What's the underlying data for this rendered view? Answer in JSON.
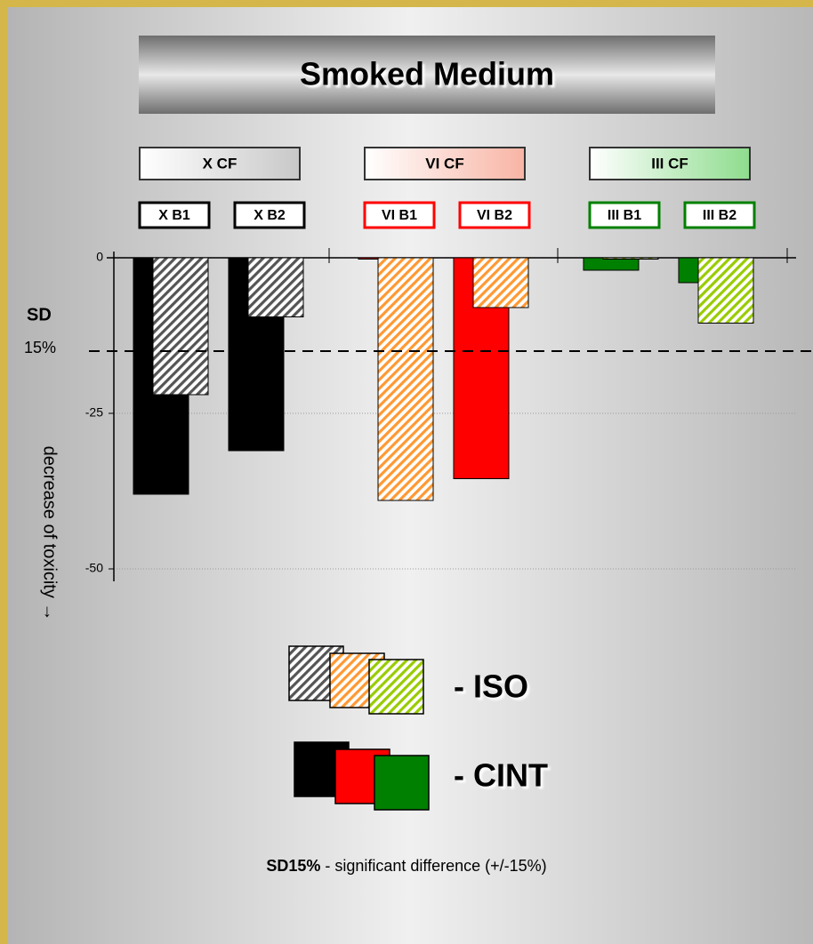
{
  "chart_data": {
    "type": "bar",
    "title": "Smoked Medium",
    "groups": [
      {
        "label": "X CF",
        "color": "#c8c8c8"
      },
      {
        "label": "VI CF",
        "color": "#f8b4a4"
      },
      {
        "label": "III CF",
        "color": "#8edc8e"
      }
    ],
    "categories": [
      "X B1",
      "X B2",
      "VI B1",
      "VI B2",
      "III B1",
      "III B2"
    ],
    "series": [
      {
        "name": "- CINT",
        "colors": [
          "#000000",
          "#ff0000",
          "#008000"
        ],
        "hatch": false,
        "values": [
          -38,
          -31,
          0,
          -35.5,
          -2,
          -4
        ]
      },
      {
        "name": "- ISO",
        "colors": [
          "#555555",
          "#ff9933",
          "#99cc00"
        ],
        "hatch": true,
        "values": [
          -22,
          -9.5,
          -39,
          -8,
          0,
          -10.5
        ]
      }
    ],
    "ylim": [
      -52,
      1
    ],
    "yticks": [
      0,
      -25,
      -50
    ],
    "grid": true,
    "threshold": {
      "value": -15,
      "name": "SD",
      "label": "15%"
    },
    "y_label": "decrease of toxicity →",
    "footnote": {
      "bold": "SD15%",
      "text": " - significant difference (+/-15%)"
    }
  }
}
